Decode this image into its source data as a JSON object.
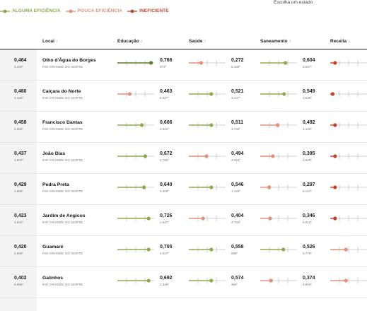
{
  "colors": {
    "alguma": "#8fa84e",
    "pouca": "#e0907a",
    "ineficiente": "#c0442d",
    "verde_escuro": "#5e7a24",
    "cinza": "#aaaaaa"
  },
  "legend": [
    {
      "label": "ALGUMA EFICIÊNCIA",
      "color": "#8fa84e"
    },
    {
      "label": "POUCA EFICIÊNCIA",
      "color": "#e0907a"
    },
    {
      "label": "INEFICIENTE",
      "color": "#c0442d"
    }
  ],
  "state_select_label": "Escolha um estado",
  "columns": {
    "local": "Local",
    "educacao": "Educação",
    "saude": "Saúde",
    "saneamento": "Saneamento",
    "receita": "Receita",
    "sort_arrow": "↑"
  },
  "rows": [
    {
      "prev_value": "0,464",
      "prev_rank": "4.440º",
      "city": "Olho d'Água do Borges",
      "state": "RIO GRANDE DO NORTE",
      "educacao": {
        "value": "0,766",
        "rank": "973º",
        "level": "alguma-forte",
        "pos": 0.95
      },
      "saude": {
        "value": "0,272",
        "rank": "5.169º",
        "level": "pouca",
        "pos": 0.32
      },
      "saneamento": {
        "value": "0,604",
        "rank": "2.847º",
        "level": "alguma",
        "pos": 0.7
      },
      "receita": {
        "level": "ineficiente",
        "pos": 0.1
      }
    },
    {
      "prev_value": "0,460",
      "prev_rank": "4.155º",
      "city": "Caiçara do Norte",
      "state": "RIO GRANDE DO NORTE",
      "educacao": {
        "value": "0,463",
        "rank": "5.027º",
        "level": "pouca",
        "pos": 0.32
      },
      "saude": {
        "value": "0,521",
        "rank": "3.137º",
        "level": "alguma",
        "pos": 0.62
      },
      "saneamento": {
        "value": "0,549",
        "rank": "3.539º",
        "level": "alguma",
        "pos": 0.66
      },
      "receita": {
        "level": "ineficiente",
        "pos": 0.03
      }
    },
    {
      "prev_value": "0,458",
      "prev_rank": "4.565º",
      "city": "Francisco Dantas",
      "state": "RIO GRANDE DO NORTE",
      "educacao": {
        "value": "0,606",
        "rank": "3.931º",
        "level": "alguma",
        "pos": 0.68
      },
      "saude": {
        "value": "0,511",
        "rank": "3.733º",
        "level": "alguma",
        "pos": 0.62
      },
      "saneamento": {
        "value": "0,492",
        "rank": "4.133º",
        "level": "pouca",
        "pos": 0.47
      },
      "receita": {
        "level": "ineficiente",
        "pos": 0.1
      }
    },
    {
      "prev_value": "0,437",
      "prev_rank": "4.810º",
      "city": "João Dias",
      "state": "RIO GRANDE DO NORTE",
      "educacao": {
        "value": "0,672",
        "rank": "2.780º",
        "level": "alguma",
        "pos": 0.78
      },
      "saude": {
        "value": "0,494",
        "rank": "4.015º",
        "level": "pouca",
        "pos": 0.48
      },
      "saneamento": {
        "value": "0,395",
        "rank": "4.829º",
        "level": "pouca",
        "pos": 0.33
      },
      "receita": {
        "level": "ineficiente",
        "pos": 0.1
      }
    },
    {
      "prev_value": "0,429",
      "prev_rank": "4.886º",
      "city": "Pedra Preta",
      "state": "RIO GRANDE DO NORTE",
      "educacao": {
        "value": "0,640",
        "rank": "3.409º",
        "level": "alguma",
        "pos": 0.74
      },
      "saude": {
        "value": "0,546",
        "rank": "1.128º",
        "level": "alguma",
        "pos": 0.62
      },
      "saneamento": {
        "value": "0,297",
        "rank": "5.121º",
        "level": "pouca",
        "pos": 0.22
      },
      "receita": {
        "level": "ineficiente",
        "pos": 0.1
      }
    },
    {
      "prev_value": "0,423",
      "prev_rank": "4.942º",
      "city": "Jardim de Angicos",
      "state": "RIO GRANDE DO NORTE",
      "educacao": {
        "value": "0,726",
        "rank": "1.647º",
        "level": "alguma",
        "pos": 0.88
      },
      "saude": {
        "value": "0,404",
        "rank": "4.753º",
        "level": "pouca",
        "pos": 0.38
      },
      "saneamento": {
        "value": "0,346",
        "rank": "5.012º",
        "level": "pouca",
        "pos": 0.25
      },
      "receita": {
        "level": "ineficiente",
        "pos": 0.1
      }
    },
    {
      "prev_value": "0,420",
      "prev_rank": "4.959º",
      "city": "Guamaré",
      "state": "RIO GRANDE DO NORTE",
      "educacao": {
        "value": "0,705",
        "rank": "2.047º",
        "level": "alguma",
        "pos": 0.88
      },
      "saude": {
        "value": "0,558",
        "rank": "686º",
        "level": "alguma",
        "pos": 0.62
      },
      "saneamento": {
        "value": "0,526",
        "rank": "3.779º",
        "level": "alguma",
        "pos": 0.64
      },
      "receita": {
        "level": "pouca",
        "pos": 0.42
      }
    },
    {
      "prev_value": "0,402",
      "prev_rank": "5.056º",
      "city": "Galinhos",
      "state": "RIO GRANDE DO NORTE",
      "educacao": {
        "value": "0,692",
        "rank": "2.325º",
        "level": "alguma",
        "pos": 0.88
      },
      "saude": {
        "value": "0,574",
        "rank": "364º",
        "level": "alguma",
        "pos": 0.62
      },
      "saneamento": {
        "value": "0,374",
        "rank": "4.904º",
        "level": "pouca",
        "pos": 0.28
      },
      "receita": {
        "level": "pouca",
        "pos": 0.42
      }
    }
  ]
}
